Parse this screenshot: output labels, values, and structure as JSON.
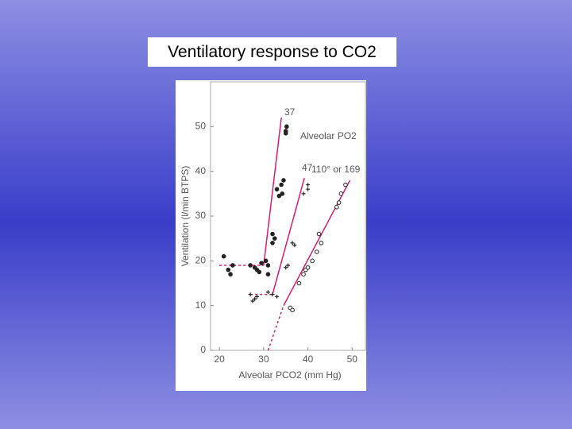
{
  "title": "Ventilatory response to CO2",
  "chart_data": {
    "type": "line",
    "y_label": "Ventilation (l/min BTPS)",
    "x_label": "Alveolar PCO2 (mm Hg)",
    "annotation": "Alveolar PO2",
    "xlim": [
      18,
      53
    ],
    "ylim": [
      0,
      60
    ],
    "xticks": [
      20,
      30,
      40,
      50
    ],
    "yticks": [
      0,
      10,
      20,
      30,
      40,
      50
    ],
    "color": "#d81b73",
    "series": [
      {
        "name": "37",
        "marker": "filled",
        "x": [
          21,
          22,
          22.5,
          23,
          27,
          28,
          28.5,
          29,
          29.5,
          30.5,
          31,
          31,
          32,
          32,
          32.5,
          33,
          33.5,
          34,
          34.5,
          34.2,
          35,
          35.2,
          35
        ],
        "values": [
          21,
          18,
          17,
          19,
          19,
          18.5,
          18,
          17.5,
          19.5,
          20,
          19,
          17,
          26,
          24,
          25,
          36,
          34.5,
          37,
          38,
          35,
          49,
          50,
          48.5
        ],
        "fit_dashed": {
          "x": [
            20,
            30
          ],
          "values": [
            19,
            19
          ]
        },
        "fit_solid": {
          "x": [
            30,
            34
          ],
          "values": [
            19,
            52
          ]
        }
      },
      {
        "name": "47",
        "marker": "cross",
        "x": [
          27,
          27.5,
          28,
          28.5,
          31,
          32,
          33,
          35,
          35.5,
          36.5,
          37,
          39,
          40,
          40
        ],
        "values": [
          12.5,
          11,
          11.5,
          12,
          13,
          12.5,
          12,
          18.5,
          19,
          24,
          23.5,
          35,
          36,
          37
        ],
        "fit_dashed": {
          "x": [
            27,
            32
          ],
          "values": [
            12.5,
            12.5
          ]
        },
        "fit_solid": {
          "x": [
            32,
            39.2
          ],
          "values": [
            12.5,
            38.5
          ]
        }
      },
      {
        "name": "110° or 169",
        "marker": "open",
        "x": [
          36,
          36.5,
          38,
          39,
          39.5,
          40,
          41,
          42,
          43,
          42.5,
          46.5,
          47,
          47.5,
          48.5
        ],
        "values": [
          9.5,
          9,
          15,
          17,
          18,
          18.5,
          20,
          22,
          24,
          26,
          32,
          33,
          35,
          37
        ],
        "fit_dashed": {
          "x": [
            31,
            34.5
          ],
          "values": [
            0,
            10
          ]
        },
        "fit_solid": {
          "x": [
            34.5,
            49.5
          ],
          "values": [
            10,
            38
          ]
        }
      }
    ]
  }
}
